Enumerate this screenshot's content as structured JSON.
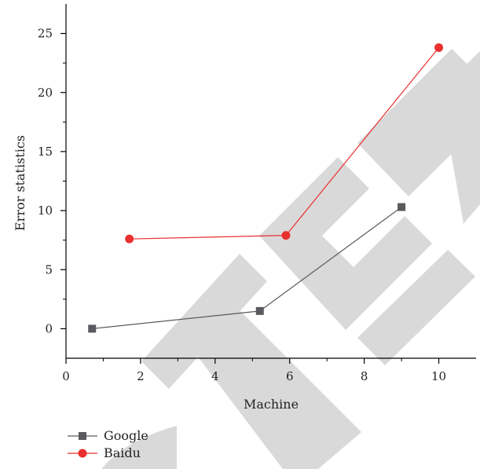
{
  "chart_data": {
    "type": "line",
    "title": "",
    "xlabel": "Machine",
    "ylabel": "Error statistics",
    "xlim": [
      0,
      11
    ],
    "ylim": [
      -2.5,
      27.5
    ],
    "xticks": [
      0,
      2,
      4,
      6,
      8,
      10
    ],
    "yticks": [
      0,
      5,
      10,
      15,
      20,
      25
    ],
    "grid": false,
    "legend_position": "bottom-left",
    "series": [
      {
        "name": "Google",
        "color": "#5a5a5e",
        "marker": "square",
        "points": [
          [
            0.7,
            0.0
          ],
          [
            5.2,
            1.5
          ],
          [
            9.0,
            10.3
          ]
        ]
      },
      {
        "name": "Baidu",
        "color": "#e8302f",
        "marker": "circle",
        "points": [
          [
            1.7,
            7.6
          ],
          [
            5.9,
            7.9
          ],
          [
            10.0,
            23.8
          ]
        ]
      }
    ],
    "watermark_color": "#d9d9d9"
  }
}
